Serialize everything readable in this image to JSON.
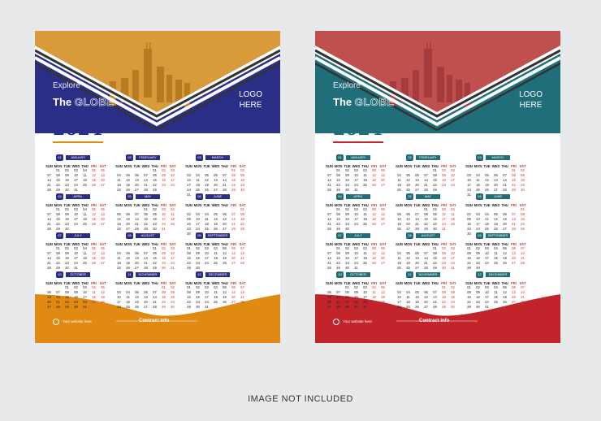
{
  "posters": [
    {
      "explore": "Explore",
      "the": "The",
      "globe": "GLOBE",
      "logo_line1": "LOGO",
      "logo_line2": "HERE",
      "year": "2024",
      "website": "Your website here",
      "contact": "Contract info",
      "colors": {
        "primary": "#2b2e86",
        "accent": "#e08a14",
        "year": "#2b2e86"
      }
    },
    {
      "explore": "Explore",
      "the": "The",
      "globe": "GLOBE",
      "logo_line1": "LOGO",
      "logo_line2": "HERE",
      "year": "2024",
      "website": "Your website here",
      "contact": "Contract info",
      "colors": {
        "primary": "#1f6e79",
        "accent": "#c2242b",
        "year": "#1f6e79"
      }
    }
  ],
  "weekdays": [
    "SUN",
    "MON",
    "TUE",
    "WED",
    "THU",
    "FRI",
    "SAT"
  ],
  "months": [
    {
      "num": "01",
      "name": "JANUARY",
      "weeks": [
        [
          "",
          "01",
          "02",
          "03",
          "04",
          "05",
          "06"
        ],
        [
          "07",
          "08",
          "09",
          "10",
          "11",
          "12",
          "13"
        ],
        [
          "14",
          "15",
          "16",
          "17",
          "18",
          "19",
          "20"
        ],
        [
          "21",
          "22",
          "23",
          "24",
          "25",
          "26",
          "27"
        ],
        [
          "28",
          "29",
          "30",
          "31",
          "",
          "",
          ""
        ]
      ]
    },
    {
      "num": "02",
      "name": "FEBRUARY",
      "weeks": [
        [
          "",
          "",
          "",
          "",
          "01",
          "02",
          "03"
        ],
        [
          "04",
          "05",
          "06",
          "07",
          "08",
          "09",
          "10"
        ],
        [
          "11",
          "12",
          "13",
          "14",
          "15",
          "16",
          "17"
        ],
        [
          "18",
          "19",
          "20",
          "21",
          "22",
          "23",
          "24"
        ],
        [
          "25",
          "26",
          "27",
          "28",
          "29",
          "",
          ""
        ]
      ]
    },
    {
      "num": "03",
      "name": "MARCH",
      "weeks": [
        [
          "",
          "",
          "",
          "",
          "",
          "01",
          "02"
        ],
        [
          "03",
          "04",
          "05",
          "06",
          "07",
          "08",
          "09"
        ],
        [
          "10",
          "11",
          "12",
          "13",
          "14",
          "15",
          "16"
        ],
        [
          "17",
          "18",
          "19",
          "20",
          "21",
          "22",
          "23"
        ],
        [
          "24",
          "25",
          "26",
          "27",
          "28",
          "29",
          "30"
        ],
        [
          "31",
          "",
          "",
          "",
          "",
          "",
          ""
        ]
      ]
    },
    {
      "num": "04",
      "name": "APRIL",
      "weeks": [
        [
          "",
          "01",
          "02",
          "03",
          "04",
          "05",
          "06"
        ],
        [
          "07",
          "08",
          "09",
          "10",
          "11",
          "12",
          "13"
        ],
        [
          "14",
          "15",
          "16",
          "17",
          "18",
          "19",
          "20"
        ],
        [
          "21",
          "22",
          "23",
          "24",
          "25",
          "26",
          "27"
        ],
        [
          "28",
          "29",
          "30",
          "",
          "",
          "",
          ""
        ]
      ]
    },
    {
      "num": "05",
      "name": "MAY",
      "weeks": [
        [
          "",
          "",
          "",
          "01",
          "02",
          "03",
          "04"
        ],
        [
          "05",
          "06",
          "07",
          "08",
          "09",
          "10",
          "11"
        ],
        [
          "12",
          "13",
          "14",
          "15",
          "16",
          "17",
          "18"
        ],
        [
          "19",
          "20",
          "21",
          "22",
          "23",
          "24",
          "25"
        ],
        [
          "26",
          "27",
          "28",
          "29",
          "30",
          "31",
          ""
        ]
      ]
    },
    {
      "num": "06",
      "name": "JUNE",
      "weeks": [
        [
          "",
          "",
          "",
          "",
          "",
          "",
          "01"
        ],
        [
          "02",
          "03",
          "04",
          "05",
          "06",
          "07",
          "08"
        ],
        [
          "09",
          "10",
          "11",
          "12",
          "13",
          "14",
          "15"
        ],
        [
          "16",
          "17",
          "18",
          "19",
          "20",
          "21",
          "22"
        ],
        [
          "23",
          "24",
          "25",
          "26",
          "27",
          "28",
          "29"
        ],
        [
          "30",
          "",
          "",
          "",
          "",
          "",
          ""
        ]
      ]
    },
    {
      "num": "07",
      "name": "JULY",
      "weeks": [
        [
          "",
          "01",
          "02",
          "03",
          "04",
          "05",
          "06"
        ],
        [
          "07",
          "08",
          "09",
          "10",
          "11",
          "12",
          "13"
        ],
        [
          "14",
          "15",
          "16",
          "17",
          "18",
          "19",
          "20"
        ],
        [
          "21",
          "22",
          "23",
          "24",
          "25",
          "26",
          "27"
        ],
        [
          "28",
          "29",
          "30",
          "31",
          "",
          "",
          ""
        ]
      ]
    },
    {
      "num": "08",
      "name": "AUGUST",
      "weeks": [
        [
          "",
          "",
          "",
          "",
          "01",
          "02",
          "03"
        ],
        [
          "04",
          "05",
          "06",
          "07",
          "08",
          "09",
          "10"
        ],
        [
          "11",
          "12",
          "13",
          "14",
          "15",
          "16",
          "17"
        ],
        [
          "18",
          "19",
          "20",
          "21",
          "22",
          "23",
          "24"
        ],
        [
          "25",
          "26",
          "27",
          "28",
          "29",
          "30",
          "31"
        ]
      ]
    },
    {
      "num": "09",
      "name": "SEPTEMBER",
      "weeks": [
        [
          "01",
          "02",
          "03",
          "04",
          "05",
          "06",
          "07"
        ],
        [
          "08",
          "09",
          "10",
          "11",
          "12",
          "13",
          "14"
        ],
        [
          "15",
          "16",
          "17",
          "18",
          "19",
          "20",
          "21"
        ],
        [
          "22",
          "23",
          "24",
          "25",
          "26",
          "27",
          "28"
        ],
        [
          "29",
          "30",
          "",
          "",
          "",
          "",
          ""
        ]
      ]
    },
    {
      "num": "10",
      "name": "OCTOBER",
      "weeks": [
        [
          "",
          "",
          "01",
          "02",
          "03",
          "04",
          "05"
        ],
        [
          "06",
          "07",
          "08",
          "09",
          "10",
          "11",
          "12"
        ],
        [
          "13",
          "14",
          "15",
          "16",
          "17",
          "18",
          "19"
        ],
        [
          "20",
          "21",
          "22",
          "23",
          "24",
          "25",
          "26"
        ],
        [
          "27",
          "28",
          "29",
          "30",
          "31",
          "",
          ""
        ]
      ]
    },
    {
      "num": "11",
      "name": "NOVEMBER",
      "weeks": [
        [
          "",
          "",
          "",
          "",
          "",
          "01",
          "02"
        ],
        [
          "03",
          "04",
          "05",
          "06",
          "07",
          "08",
          "09"
        ],
        [
          "10",
          "11",
          "12",
          "13",
          "14",
          "15",
          "16"
        ],
        [
          "17",
          "18",
          "19",
          "20",
          "21",
          "22",
          "23"
        ],
        [
          "24",
          "25",
          "26",
          "27",
          "28",
          "29",
          "30"
        ]
      ]
    },
    {
      "num": "12",
      "name": "DECEMBER",
      "weeks": [
        [
          "01",
          "02",
          "03",
          "04",
          "05",
          "06",
          "07"
        ],
        [
          "08",
          "09",
          "10",
          "11",
          "12",
          "13",
          "14"
        ],
        [
          "15",
          "16",
          "17",
          "18",
          "19",
          "20",
          "21"
        ],
        [
          "22",
          "23",
          "24",
          "25",
          "26",
          "27",
          "28"
        ],
        [
          "29",
          "30",
          "31",
          "",
          "",
          "",
          ""
        ]
      ]
    }
  ],
  "caption": "IMAGE NOT INCLUDED"
}
